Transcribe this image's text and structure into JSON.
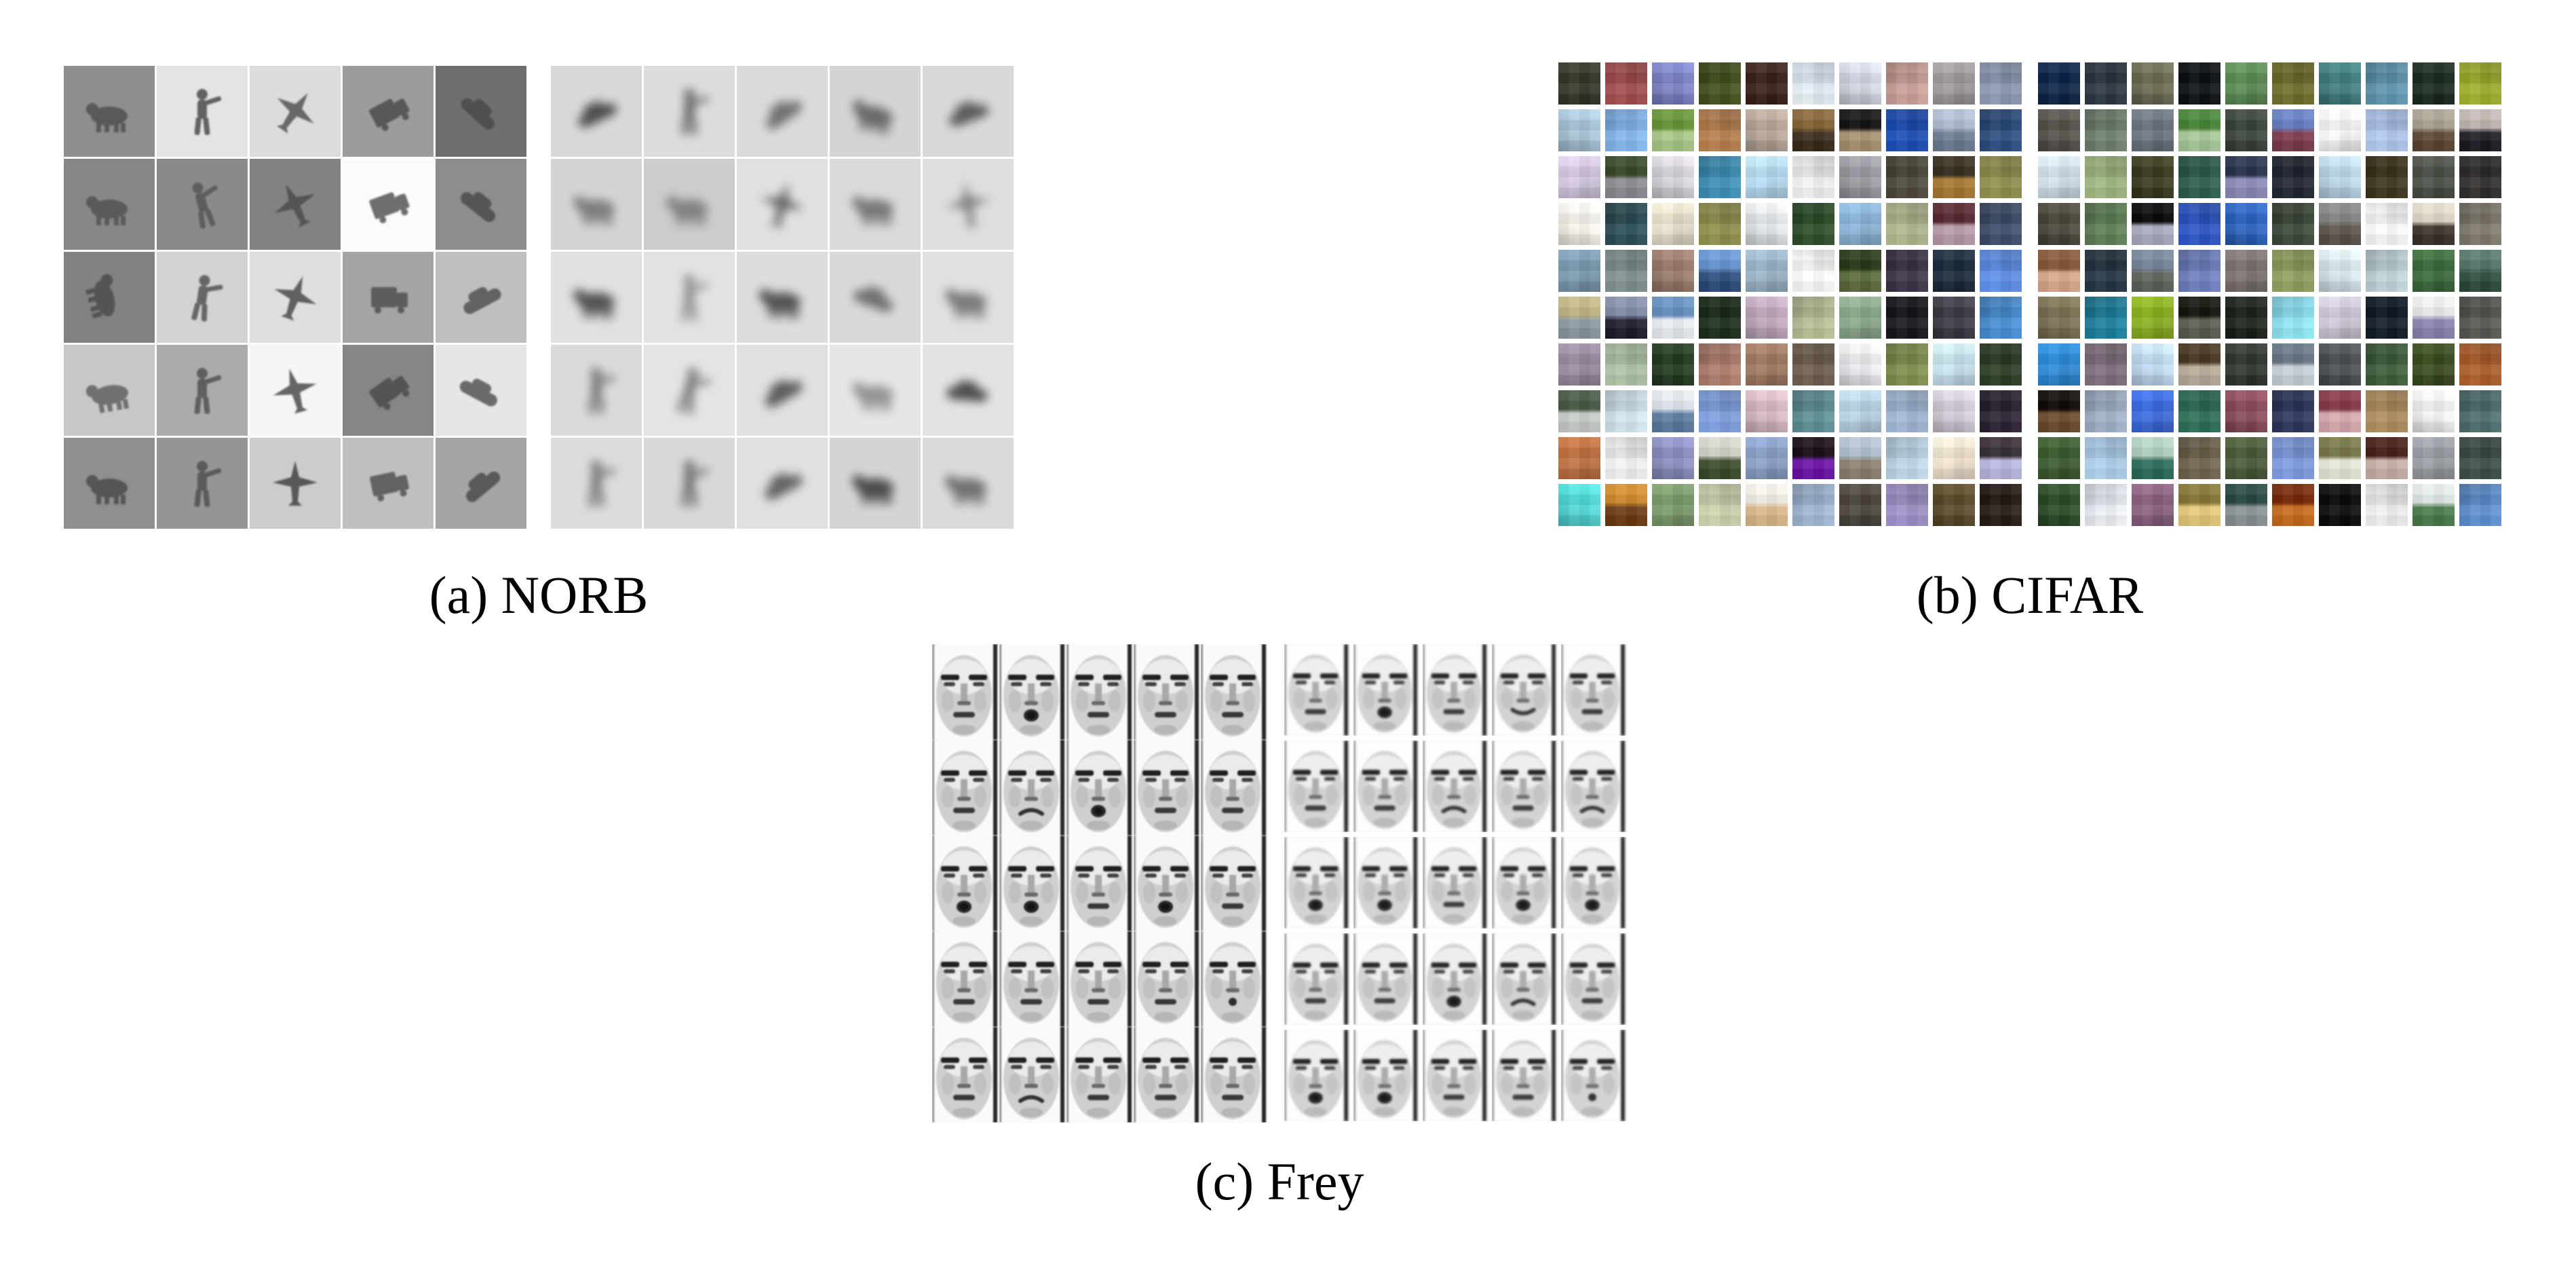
{
  "captions": {
    "a": "(a) NORB",
    "b": "(b) CIFAR",
    "c": "(c) Frey"
  },
  "colors": {
    "page_bg": "#ffffff",
    "caption_color": "#000000",
    "norb_object": "#4c4c4c"
  },
  "norb": {
    "data_grid": [
      {
        "b": "#8e8e8e",
        "t": "animal",
        "d": 0.8,
        "r": 0
      },
      {
        "b": "#e4e4e4",
        "t": "person",
        "d": 0.85,
        "r": 0
      },
      {
        "b": "#dcdcdc",
        "t": "plane",
        "d": 0.8,
        "r": 35
      },
      {
        "b": "#9c9c9c",
        "t": "truck",
        "d": 0.85,
        "r": -28
      },
      {
        "b": "#6f6f6f",
        "t": "car",
        "d": 0.9,
        "r": 42
      },
      {
        "b": "#878787",
        "t": "animal",
        "d": 0.75,
        "r": 0
      },
      {
        "b": "#8a8a8a",
        "t": "person",
        "d": 0.7,
        "r": -15
      },
      {
        "b": "#828282",
        "t": "plane",
        "d": 0.85,
        "r": -25
      },
      {
        "b": "#fbfbfb",
        "t": "truck",
        "d": 0.8,
        "r": -20
      },
      {
        "b": "#8d8d8d",
        "t": "car",
        "d": 0.85,
        "r": 38
      },
      {
        "b": "#828282",
        "t": "animal",
        "d": 0.85,
        "r": 75
      },
      {
        "b": "#d2d2d2",
        "t": "person",
        "d": 0.8,
        "r": 8
      },
      {
        "b": "#dedede",
        "t": "plane",
        "d": 0.85,
        "r": 20
      },
      {
        "b": "#a5a5a5",
        "t": "truck",
        "d": 0.8,
        "r": 0
      },
      {
        "b": "#bfbfbf",
        "t": "car",
        "d": 0.8,
        "r": -28
      },
      {
        "b": "#c7c7c7",
        "t": "animal",
        "d": 0.7,
        "r": -10
      },
      {
        "b": "#ababab",
        "t": "person",
        "d": 0.8,
        "r": 0
      },
      {
        "b": "#f5f5f5",
        "t": "plane",
        "d": 0.85,
        "r": -15
      },
      {
        "b": "#868686",
        "t": "truck",
        "d": 0.85,
        "r": -35
      },
      {
        "b": "#e6e6e6",
        "t": "car",
        "d": 0.8,
        "r": 28
      },
      {
        "b": "#8f8f8f",
        "t": "animal",
        "d": 0.85,
        "r": 0
      },
      {
        "b": "#959595",
        "t": "person",
        "d": 0.8,
        "r": 0
      },
      {
        "b": "#cccccc",
        "t": "plane",
        "d": 0.9,
        "r": 0
      },
      {
        "b": "#bfbfbf",
        "t": "truck",
        "d": 0.8,
        "r": -12
      },
      {
        "b": "#a5a5a5",
        "t": "car",
        "d": 0.85,
        "r": -40
      }
    ],
    "sample_grid": [
      {
        "b": "#d8d8d8",
        "t": "car",
        "d": 0.95,
        "r": -25
      },
      {
        "b": "#dcdcdc",
        "t": "person",
        "d": 0.8,
        "r": 0
      },
      {
        "b": "#dadada",
        "t": "car",
        "d": 0.7,
        "r": -35
      },
      {
        "b": "#d4d4d4",
        "t": "animal",
        "d": 0.75,
        "r": 10
      },
      {
        "b": "#d8d8d8",
        "t": "car",
        "d": 0.85,
        "r": -20
      },
      {
        "b": "#d4d4d4",
        "t": "animal",
        "d": 0.6,
        "r": 0
      },
      {
        "b": "#cccccc",
        "t": "animal",
        "d": 0.55,
        "r": 0
      },
      {
        "b": "#e0e0e0",
        "t": "plane",
        "d": 0.8,
        "r": 15
      },
      {
        "b": "#dadada",
        "t": "animal",
        "d": 0.65,
        "r": 0
      },
      {
        "b": "#dedede",
        "t": "plane",
        "d": 0.6,
        "r": -10
      },
      {
        "b": "#e0e0e0",
        "t": "animal",
        "d": 0.9,
        "r": 0
      },
      {
        "b": "#e2e2e2",
        "t": "person",
        "d": 0.55,
        "r": 0
      },
      {
        "b": "#dcdcdc",
        "t": "animal",
        "d": 0.9,
        "r": 0
      },
      {
        "b": "#d8d8d8",
        "t": "car",
        "d": 0.7,
        "r": 20
      },
      {
        "b": "#e0e0e0",
        "t": "animal",
        "d": 0.65,
        "r": 0
      },
      {
        "b": "#dadada",
        "t": "person",
        "d": 0.7,
        "r": 0
      },
      {
        "b": "#e4e4e4",
        "t": "person",
        "d": 0.7,
        "r": 12
      },
      {
        "b": "#e0e0e0",
        "t": "car",
        "d": 0.85,
        "r": -30
      },
      {
        "b": "#e6e6e6",
        "t": "animal",
        "d": 0.5,
        "r": 0
      },
      {
        "b": "#e2e2e2",
        "t": "car",
        "d": 0.95,
        "r": 5
      },
      {
        "b": "#dcdcdc",
        "t": "person",
        "d": 0.7,
        "r": 0
      },
      {
        "b": "#d8d8d8",
        "t": "person",
        "d": 0.75,
        "r": 0
      },
      {
        "b": "#e0e0e0",
        "t": "car",
        "d": 0.8,
        "r": -28
      },
      {
        "b": "#d4d4d4",
        "t": "animal",
        "d": 0.95,
        "r": 0
      },
      {
        "b": "#dadada",
        "t": "animal",
        "d": 0.7,
        "r": 0
      }
    ]
  },
  "cifar": {
    "data_grid": [
      "#333628",
      "#9c4a4a",
      "#7b82c6",
      "#3f4d1a",
      "#3a2018",
      "#dce6f2",
      "#d3d6e2",
      "#c49a92",
      "#a09a9a",
      "#8893ad",
      "#a8c4d8",
      "#7fb0e8",
      "#6a9a3a|#a8c888",
      "#b07a4a",
      "#b8a698",
      "#8a6a3a|#3a2a18",
      "#151515|#a89070",
      "#1a4ab0",
      "#b8c4d8|#6a7a90",
      "#2a4a7a",
      "#d4c8e0",
      "#3a4a2a|#8a8a92",
      "#d8d4dc",
      "#3a8ab0",
      "#b8dcf4",
      "#ececec",
      "#9a9aa2",
      "#4a4538",
      "#3a3020|#a87830",
      "#8a8a4a",
      "#faf6ee",
      "#2a4a52",
      "#e8e0cc",
      "#8a8a4a",
      "#e4e8ec",
      "#2a4a28",
      "#8ab4d8",
      "#a8b088",
      "#5a2a32|#b89aa8",
      "#3a4a66",
      "#7a9ab0",
      "#7a8a8a",
      "#9a7a6a",
      "#6a9ad8|#2a4a7a",
      "#9ab4c8",
      "#fdfdfd",
      "#2a3a1a|#5a6a3a",
      "#3a3044",
      "#1a2a3a",
      "#5a8ae0",
      "#c8bc8a|#8a98a0",
      "#8a92b0|#1a1a2a",
      "#6a94c4|#e8eef2",
      "#1a2a1a",
      "#c0a8bc",
      "#b0b890",
      "#8aa88a",
      "#15151c",
      "#3a3a44",
      "#4488cc",
      "#9a8aa0",
      "#a8bca0",
      "#223a1e",
      "#a87868",
      "#a07860",
      "#6a5a4a",
      "#ececf0",
      "#7a8a4a",
      "#c8e4f0",
      "#2a3a22",
      "#4a5a48|#c8ccc8",
      "#ccdee8",
      "#e8eef4|#5a7aa0",
      "#7a9ad8",
      "#d8b8c4",
      "#5a8a90",
      "#b8d4e8",
      "#9ab0cc",
      "#d4ccd8",
      "#2a2030",
      "#c07040",
      "#eceef0",
      "#8a8ec0",
      "#d8dcd0|#3a4a2a",
      "#8aa0c8",
      "#1a1018|#6a10a8",
      "#b8c8d8|#8a8070",
      "#b8d0e0",
      "#f4e4d0",
      "#3a3038|#b8b8e0",
      "#50d8d8",
      "#d89030|#6a3a10",
      "#7a9a6a",
      "#c4cca8",
      "#faf6ee|#d8b88a",
      "#9ab0cc",
      "#4a443c",
      "#9a8ac0",
      "#5a4a2a",
      "#241a14"
    ],
    "sample_grid": [
      "#0c2448",
      "#2a3440",
      "#6a6a52",
      "#0c1014",
      "#5a8a52",
      "#6a6a2a",
      "#3f7d7d",
      "#5a90aa",
      "#1a2a1e",
      "#9aa82a",
      "#55504a",
      "#6a7a6a",
      "#6a7480",
      "#4a8a3a|#a8c898",
      "#3a443a",
      "#6a84c8|#7a3a4a",
      "#f8fafc",
      "#aac0e8",
      "#b0a898|#5a4430",
      "#c8bcb8|#1a1a22",
      "#d0e0ec",
      "#9ab07a",
      "#3a3a1e",
      "#2a5a4a",
      "#2a3450|#8a8ab8",
      "#1e2430",
      "#bcd8ec",
      "#3a321a",
      "#4a4f46",
      "#2e2c2a",
      "#4a463a",
      "#5a7a52",
      "#0a0a0a|#a8aac0",
      "#2a52c0",
      "#2a62c0",
      "#3a4438",
      "#8a8a8a|#5a5048",
      "#fafafa",
      "#e8e0d0|#3a3028",
      "#7a7468",
      "#8a5a3a|#d8a88a",
      "#223240",
      "#7a8aa0|#5a6258",
      "#6a7ab8",
      "#7a7270",
      "#8a9a5a",
      "#d8e8f0",
      "#b8ccd0",
      "#3a6a3a",
      "#5a7a72|#2a4a3a",
      "#7a6f52",
      "#1a7a96",
      "#8ab01e",
      "#16160f|#5a5a52",
      "#1a221a",
      "#8adef2",
      "#cfc8d8",
      "#101a26",
      "#f4f2f6|#8a80b0",
      "#54544e",
      "#2a8ad8",
      "#7a6a78",
      "#c2dcf6",
      "#4a3a22|#b8aa98",
      "#2e362e",
      "#6a7a88|#c8d0d8",
      "#4a4e52",
      "#3a5a38",
      "#3a4a1e",
      "#a85a28",
      "#100c08|#6a4a2a",
      "#9aaac0",
      "#3a6ae0",
      "#2a6a52",
      "#8a4a5a",
      "#2a3458",
      "#8a3a4a|#d8a8b0",
      "#a8885a",
      "#f6f6f4",
      "#4a6a6a",
      "#3a5a2e",
      "#a8c8e4",
      "#b8d8c8|#2a6a5a",
      "#6a5f4a",
      "#4a5a38",
      "#7a96d8",
      "#7a7a4a|#e8e8d8",
      "#4a2018|#c8b0a8",
      "#9a9ea4",
      "#3a4a44",
      "#2a4a26",
      "#e4e8f0",
      "#8a6080",
      "#8a7a3a|#e8c878",
      "#2a4a46|#8a9296",
      "#7a2a08|#c86a1a",
      "#0a0a08",
      "#e8eae8",
      "#e8f0ec|#4a7a4a",
      "#5a8ac8"
    ]
  },
  "frey": {
    "data_grid": [
      "n",
      "o",
      "n",
      "n",
      "n",
      "n",
      "f",
      "o",
      "n",
      "n",
      "o",
      "o",
      "n",
      "o",
      "n",
      "n",
      "n",
      "n",
      "n",
      "x",
      "n",
      "f",
      "n",
      "n",
      "n"
    ],
    "sample_grid": [
      "n",
      "o",
      "n",
      "s",
      "n",
      "n",
      "n",
      "f",
      "n",
      "f",
      "o",
      "o",
      "n",
      "o",
      "o",
      "n",
      "n",
      "o",
      "f",
      "n",
      "o",
      "o",
      "n",
      "n",
      "x"
    ]
  }
}
